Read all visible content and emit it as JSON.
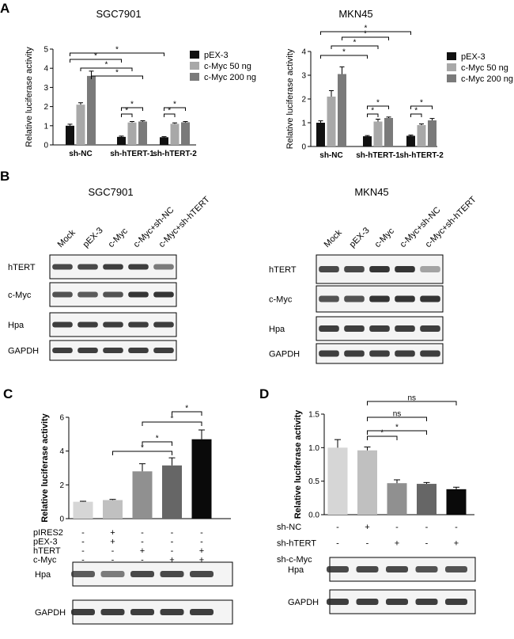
{
  "panels": {
    "A": {
      "letter": "A",
      "charts": [
        {
          "type": "bar",
          "title": "SGC7901",
          "ylabel": "Relative luciferase activity",
          "ylim": [
            0,
            5
          ],
          "yticks": [
            "0",
            "1",
            "2",
            "3",
            "4",
            "5"
          ],
          "categories": [
            "sh-NC",
            "sh-hTERT-1",
            "sh-hTERT-2"
          ],
          "series": [
            {
              "name": "pEX-3",
              "values": [
                1.0,
                0.42,
                0.4
              ]
            },
            {
              "name": "c-Myc 50 ng",
              "values": [
                2.1,
                1.17,
                1.1
              ]
            },
            {
              "name": "c-Myc 200 ng",
              "values": [
                3.6,
                1.22,
                1.18
              ]
            }
          ],
          "errors": [
            [
              0.08,
              0.04,
              0.03
            ],
            [
              0.1,
              0.05,
              0.05
            ],
            [
              0.25,
              0.04,
              0.04
            ]
          ],
          "sig_mark": "*"
        },
        {
          "type": "bar",
          "title": "MKN45",
          "ylabel": "Relative luciferase activity",
          "ylim": [
            0,
            4
          ],
          "yticks": [
            "0",
            "1",
            "2",
            "3",
            "4"
          ],
          "categories": [
            "sh-NC",
            "sh-hTERT-1",
            "sh-hTERT-2"
          ],
          "series": [
            {
              "name": "pEX-3",
              "values": [
                1.0,
                0.43,
                0.45
              ]
            },
            {
              "name": "c-Myc 50 ng",
              "values": [
                2.1,
                1.05,
                0.9
              ]
            },
            {
              "name": "c-Myc 200 ng",
              "values": [
                3.05,
                1.2,
                1.1
              ]
            }
          ],
          "errors": [
            [
              0.08,
              0.03,
              0.03
            ],
            [
              0.25,
              0.1,
              0.05
            ],
            [
              0.3,
              0.04,
              0.08
            ]
          ],
          "sig_mark": "*"
        }
      ]
    },
    "B": {
      "letter": "B",
      "blots": [
        {
          "title": "SGC7901",
          "lanes": [
            "Mock",
            "pEX-3",
            "c-Myc",
            "c-Myc+sh-NC",
            "c-Myc+sh-hTERT"
          ],
          "rows": [
            "hTERT",
            "c-Myc",
            "Hpa",
            "GAPDH"
          ]
        },
        {
          "title": "MKN45",
          "lanes": [
            "Mock",
            "pEX-3",
            "c-Myc",
            "c-Myc+sh-NC",
            "c-Myc+sh-hTERT"
          ],
          "rows": [
            "hTERT",
            "c-Myc",
            "Hpa",
            "GAPDH"
          ]
        }
      ]
    },
    "C": {
      "letter": "C",
      "chart": {
        "type": "bar",
        "ylabel": "Relative luciferase activity",
        "ylim": [
          0,
          6
        ],
        "yticks": [
          "0",
          "2",
          "4",
          "6"
        ],
        "values": [
          1.0,
          1.1,
          2.8,
          3.15,
          4.7
        ],
        "errors": [
          0.03,
          0.04,
          0.45,
          0.45,
          0.55
        ],
        "sig_mark": "*"
      },
      "conditions": [
        {
          "label": "pIRES2",
          "signs": [
            "-",
            "+",
            "-",
            "-",
            "-"
          ]
        },
        {
          "label": "pEX-3",
          "signs": [
            "-",
            "+",
            "-",
            "-",
            "-"
          ]
        },
        {
          "label": "hTERT",
          "signs": [
            "-",
            "-",
            "+",
            "-",
            "+"
          ]
        },
        {
          "label": "c-Myc",
          "signs": [
            "-",
            "-",
            "-",
            "+",
            "+"
          ]
        }
      ],
      "blot_rows": [
        "Hpa",
        "GAPDH"
      ]
    },
    "D": {
      "letter": "D",
      "chart": {
        "type": "bar",
        "ylabel": "Relative luciferase activity",
        "ylim": [
          0,
          1.5
        ],
        "yticks": [
          "0.0",
          "0.5",
          "1.0",
          "1.5"
        ],
        "values": [
          1.0,
          0.96,
          0.47,
          0.46,
          0.38
        ],
        "errors": [
          0.12,
          0.05,
          0.05,
          0.02,
          0.03
        ],
        "sig_mark": "*",
        "ns_mark": "ns"
      },
      "conditions": [
        {
          "label": "sh-NC",
          "signs": [
            "-",
            "+",
            "-",
            "-",
            "-"
          ]
        },
        {
          "label": "sh-hTERT",
          "signs": [
            "-",
            "-",
            "+",
            "-",
            "+"
          ]
        },
        {
          "label": "sh-c-Myc",
          "signs": [
            "-",
            "-",
            "-",
            "+",
            "+"
          ]
        }
      ],
      "blot_rows": [
        "Hpa",
        "GAPDH"
      ]
    }
  },
  "colors": {
    "pEX3": "#111111",
    "myc50": "#a8a8a8",
    "myc200": "#7a7a7a",
    "c_bars": [
      "#d6d6d6",
      "#c0c0c0",
      "#909090",
      "#666666",
      "#0a0a0a"
    ],
    "d_bars": [
      "#d6d6d6",
      "#c0c0c0",
      "#909090",
      "#666666",
      "#0a0a0a"
    ],
    "band": "#2a2a2a"
  }
}
